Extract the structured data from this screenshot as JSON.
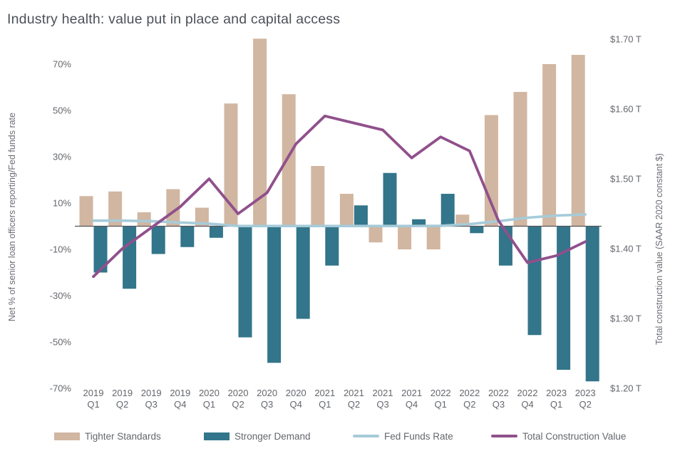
{
  "title": "Industry health: value put in place and capital access",
  "left_axis": {
    "title": "Net % of senior loan officers reporting/Fed funds rate",
    "ticks": [
      "70%",
      "50%",
      "30%",
      "10%",
      "-10%",
      "-30%",
      "-50%",
      "-70%"
    ],
    "tick_values": [
      70,
      50,
      30,
      10,
      -10,
      -30,
      -50,
      -70
    ]
  },
  "right_axis": {
    "title": "Total construction value (SAAR 2020 constant $)",
    "ticks": [
      "$1.70 T",
      "$1.60 T",
      "$1.50 T",
      "$1.40 T",
      "$1.30 T",
      "$1.20 T"
    ],
    "tick_values": [
      1.7,
      1.6,
      1.5,
      1.4,
      1.3,
      1.2
    ]
  },
  "legend": [
    {
      "label": "Tighter Standards",
      "type": "bar",
      "color": "#d1b6a1"
    },
    {
      "label": "Stronger Demand",
      "type": "bar",
      "color": "#33758a"
    },
    {
      "label": "Fed Funds Rate",
      "type": "line",
      "color": "#a6cbd9"
    },
    {
      "label": "Total Construction Value",
      "type": "line",
      "color": "#90508c"
    }
  ],
  "colors": {
    "tan_bar": "#d1b6a1",
    "teal_bar": "#33758a",
    "fed_funds_line": "#a6cbd9",
    "construction_line": "#90508c",
    "zero_line": "#55565a",
    "tick_text": "#64676d",
    "title_text": "#4c5157"
  },
  "chart_data": {
    "type": "combo-bar-line",
    "title": "Industry health: value put in place and capital access",
    "categories": [
      "2019 Q1",
      "2019 Q2",
      "2019 Q3",
      "2019 Q4",
      "2020 Q1",
      "2020 Q2",
      "2020 Q3",
      "2020 Q4",
      "2021 Q1",
      "2021 Q2",
      "2021 Q3",
      "2021 Q4",
      "2022 Q1",
      "2022 Q2",
      "2022 Q3",
      "2022 Q4",
      "2023 Q1",
      "2023 Q2"
    ],
    "left_ylabel": "Net % of senior loan officers reporting/Fed funds rate",
    "right_ylabel": "Total construction value (SAAR 2020 constant $)",
    "left_ylim": [
      -75,
      85
    ],
    "right_ylim": [
      1.195,
      1.725
    ],
    "grid": false,
    "legend_position": "bottom",
    "series": [
      {
        "name": "Tighter Standards",
        "type": "bar",
        "axis": "left",
        "color": "#d1b6a1",
        "values": [
          13,
          15,
          6,
          16,
          8,
          53,
          81,
          57,
          26,
          14,
          -7,
          -10,
          -10,
          5,
          48,
          58,
          70,
          74
        ]
      },
      {
        "name": "Stronger Demand",
        "type": "bar",
        "axis": "left",
        "color": "#33758a",
        "values": [
          -20,
          -27,
          -12,
          -9,
          -5,
          -48,
          -59,
          -40,
          -17,
          9,
          23,
          3,
          14,
          -3,
          -17,
          -47,
          -62,
          -67
        ]
      },
      {
        "name": "Fed Funds Rate",
        "type": "line",
        "axis": "left",
        "color": "#a6cbd9",
        "values": [
          2.4,
          2.4,
          2.2,
          1.6,
          1.1,
          0.1,
          0.1,
          0.1,
          0.1,
          0.1,
          0.1,
          0.1,
          0.2,
          0.9,
          2.2,
          3.7,
          4.6,
          5.1
        ]
      },
      {
        "name": "Total Construction Value",
        "type": "line",
        "axis": "right",
        "color": "#90508c",
        "values": [
          1.36,
          1.4,
          1.43,
          1.46,
          1.5,
          1.45,
          1.48,
          1.55,
          1.59,
          1.58,
          1.57,
          1.53,
          1.56,
          1.54,
          1.44,
          1.38,
          1.39,
          1.41
        ]
      }
    ]
  }
}
